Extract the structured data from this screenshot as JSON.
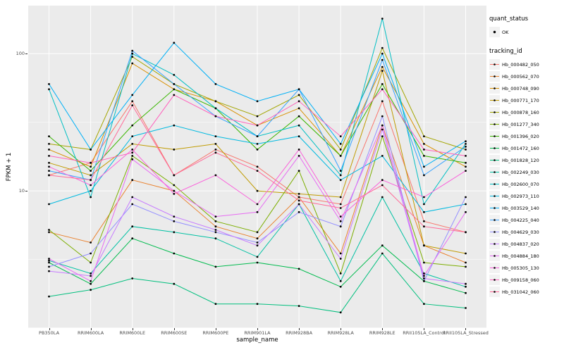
{
  "chart_data": {
    "type": "line",
    "title": "",
    "xlabel": "sample_name",
    "ylabel": "FPKM + 1",
    "y_scale": "log10",
    "ylim_log10": [
      0,
      2.35
    ],
    "y_ticks": [
      {
        "label": "100",
        "value": 100
      },
      {
        "label": "10",
        "value": 10
      }
    ],
    "grid": true,
    "legend_position": "right",
    "panel_color": "#EBEBEB",
    "grid_color": "#FFFFFF",
    "point_color": "#000000",
    "categories": [
      "PB350LA",
      "RRIM600LA",
      "RRIM600LE",
      "RRIM600SE",
      "RRIM600PE",
      "RRIM901LA",
      "RRIM928BA",
      "RRIM928LA",
      "RRIM928LE",
      "RRII105LA_Control",
      "RRII105LA_Stressed"
    ],
    "series": [
      {
        "name": "Hb_000482_050",
        "color": "#F8766D",
        "values": [
          13,
          16,
          45,
          13,
          20,
          15,
          9,
          8,
          45,
          6,
          5
        ]
      },
      {
        "name": "Hb_000562_070",
        "color": "#EA8331",
        "values": [
          5,
          4.2,
          12,
          10,
          5.5,
          4.5,
          9,
          3.5,
          30,
          4,
          3
        ]
      },
      {
        "name": "Hb_000748_090",
        "color": "#D89000",
        "values": [
          20,
          15,
          85,
          55,
          45,
          30,
          40,
          18,
          80,
          22,
          15
        ]
      },
      {
        "name": "Hb_000771_170",
        "color": "#C09B00",
        "values": [
          16,
          13,
          22,
          20,
          22,
          10,
          9.5,
          9,
          75,
          4,
          3.5
        ]
      },
      {
        "name": "Hb_000878_160",
        "color": "#A3A500",
        "values": [
          22,
          20,
          95,
          60,
          45,
          35,
          50,
          20,
          110,
          25,
          20
        ]
      },
      {
        "name": "Hb_001277_340",
        "color": "#7CAE00",
        "values": [
          5.2,
          3,
          18,
          11,
          6,
          5,
          14,
          2.5,
          25,
          3,
          2.8
        ]
      },
      {
        "name": "Hb_001396_020",
        "color": "#39B600",
        "values": [
          25,
          14,
          30,
          55,
          40,
          20,
          35,
          18,
          60,
          18,
          16
        ]
      },
      {
        "name": "Hb_001472_160",
        "color": "#00BB4E",
        "values": [
          3,
          2.1,
          4.5,
          3.5,
          2.8,
          3,
          2.7,
          2,
          4,
          2.2,
          1.8
        ]
      },
      {
        "name": "Hb_001828_120",
        "color": "#00BF7D",
        "values": [
          1.7,
          1.9,
          2.3,
          2.1,
          1.5,
          1.5,
          1.45,
          1.3,
          3.5,
          1.5,
          1.4
        ]
      },
      {
        "name": "Hb_002249_030",
        "color": "#00C1A3",
        "values": [
          3.1,
          2.5,
          5.5,
          5,
          4.5,
          3.3,
          8,
          2.2,
          9,
          2.5,
          2
        ]
      },
      {
        "name": "Hb_002600_070",
        "color": "#00BFC4",
        "values": [
          55,
          9,
          100,
          70,
          40,
          25,
          30,
          13,
          180,
          8,
          22
        ]
      },
      {
        "name": "Hb_002973_110",
        "color": "#00BAE0",
        "values": [
          8,
          10,
          25,
          30,
          25,
          22,
          25,
          12,
          18,
          7,
          8
        ]
      },
      {
        "name": "Hb_003529_140",
        "color": "#00B0F6",
        "values": [
          60,
          20,
          50,
          120,
          60,
          45,
          55,
          22,
          100,
          15,
          23
        ]
      },
      {
        "name": "Hb_004225_040",
        "color": "#35A2FF",
        "values": [
          14,
          12,
          105,
          60,
          35,
          25,
          55,
          14,
          90,
          13,
          21
        ]
      },
      {
        "name": "Hb_004629_030",
        "color": "#9590FF",
        "values": [
          2.8,
          3.5,
          8,
          6,
          5,
          4.2,
          7,
          5.5,
          35,
          2.2,
          9
        ]
      },
      {
        "name": "Hb_004837_020",
        "color": "#C77CFF",
        "values": [
          2.6,
          2.4,
          9,
          6.5,
          5.2,
          4,
          8,
          3.2,
          28,
          2.3,
          2.1
        ]
      },
      {
        "name": "Hb_004884_180",
        "color": "#E76BF3",
        "values": [
          3.2,
          2.2,
          17,
          10,
          6.5,
          7,
          18,
          6,
          30,
          2.4,
          7
        ]
      },
      {
        "name": "Hb_005305_130",
        "color": "#FA62DB",
        "values": [
          15,
          11,
          20,
          9.5,
          13,
          8,
          20,
          6.5,
          12,
          9,
          14
        ]
      },
      {
        "name": "Hb_009158_060",
        "color": "#FF62BC",
        "values": [
          18,
          16,
          19,
          50,
          35,
          30,
          45,
          25,
          55,
          20,
          18
        ]
      },
      {
        "name": "Hb_031042_060",
        "color": "#FF6A98",
        "values": [
          13,
          12,
          42,
          13,
          19,
          14,
          8.5,
          7.5,
          11,
          5.5,
          5
        ]
      }
    ]
  },
  "legend": {
    "quant_status_title": "quant_status",
    "quant_status_items": [
      {
        "label": "OK"
      }
    ],
    "tracking_id_title": "tracking_id"
  }
}
